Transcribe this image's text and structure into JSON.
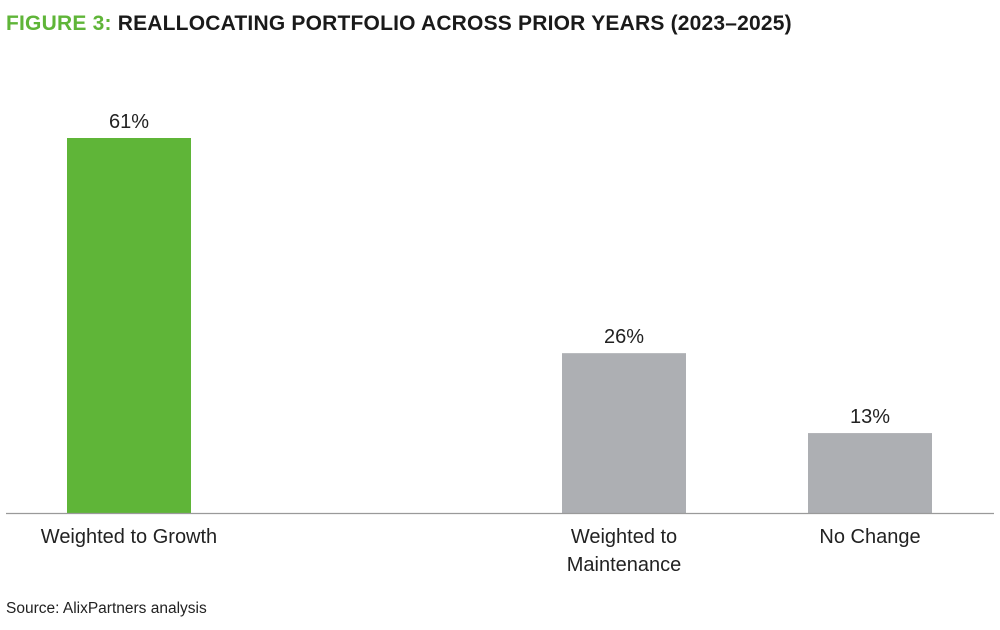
{
  "title": {
    "prefix": "FIGURE 3:",
    "text": "REALLOCATING PORTFOLIO ACROSS PRIOR YEARS (2023–2025)"
  },
  "source": "Source: AlixPartners analysis",
  "colors": {
    "accent": "#5fb538",
    "neutral": "#adafb3",
    "axis": "#9a9a9a"
  },
  "chart_data": {
    "type": "bar",
    "categories": [
      [
        "Weighted to Growth"
      ],
      [
        "Weighted to",
        "Maintenance"
      ],
      [
        "No Change"
      ]
    ],
    "values": [
      61,
      26,
      13
    ],
    "data_labels": [
      "61%",
      "26%",
      "13%"
    ],
    "bar_colors": [
      "#5fb538",
      "#adafb3",
      "#adafb3"
    ],
    "unit": "%",
    "ylim": [
      0,
      61
    ],
    "grid": false,
    "legend": "none"
  }
}
